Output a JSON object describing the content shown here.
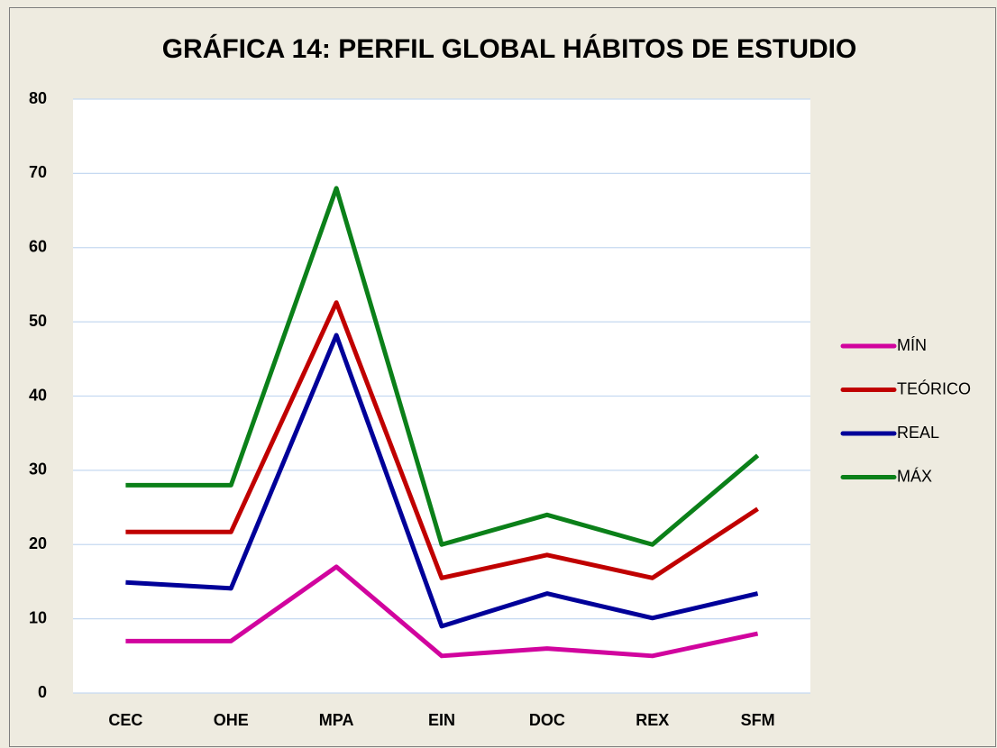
{
  "chart_data": {
    "type": "line",
    "title": "GRÁFICA 14: PERFIL GLOBAL HÁBITOS DE ESTUDIO",
    "categories": [
      "CEC",
      "OHE",
      "MPA",
      "EIN",
      "DOC",
      "REX",
      "SFM"
    ],
    "series": [
      {
        "name": "MÍN",
        "color": "#d1049e",
        "values": [
          7,
          7,
          17,
          5,
          6,
          5,
          8
        ]
      },
      {
        "name": "TEÓRICO",
        "color": "#c00000",
        "values": [
          21.7,
          21.7,
          52.6,
          15.5,
          18.6,
          15.5,
          24.8
        ]
      },
      {
        "name": "REAL",
        "color": "#000099",
        "values": [
          14.9,
          14.1,
          48.2,
          9,
          13.4,
          10.1,
          13.4
        ]
      },
      {
        "name": "MÁX",
        "color": "#0b8019",
        "values": [
          28,
          28,
          68,
          20,
          24,
          20,
          32
        ]
      }
    ],
    "ylim": [
      0,
      80
    ],
    "yticks": [
      0,
      10,
      20,
      30,
      40,
      50,
      60,
      70,
      80
    ],
    "grid": true,
    "legend": "right"
  }
}
